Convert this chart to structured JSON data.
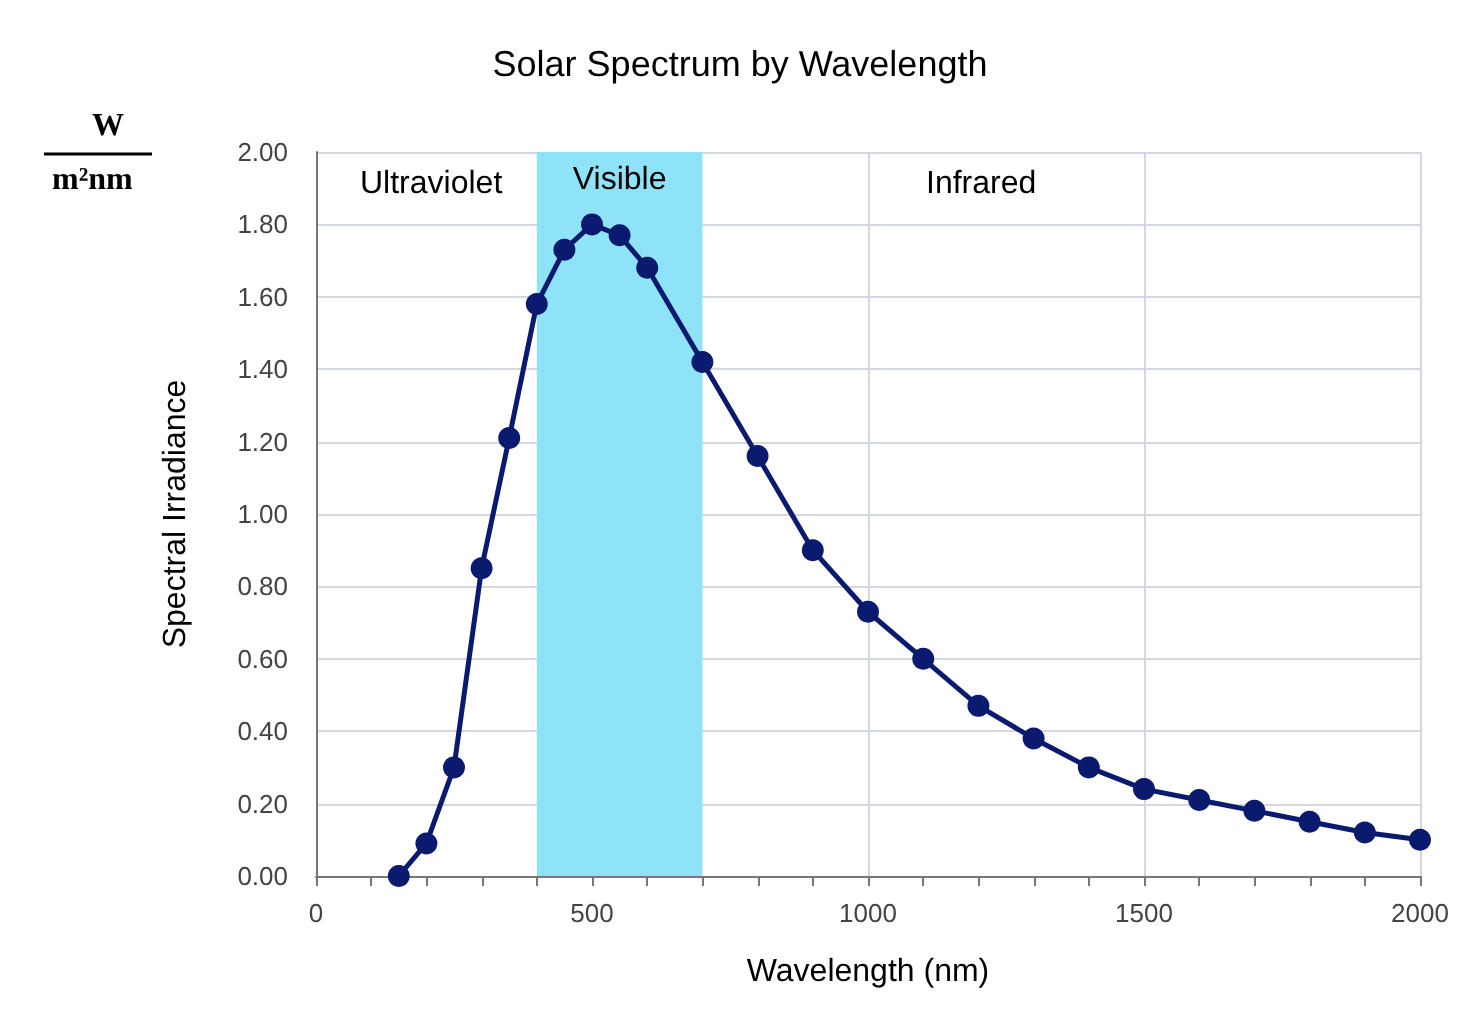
{
  "chart_data": {
    "type": "line",
    "title": "Solar Spectrum by Wavelength",
    "xlabel": "Wavelength (nm)",
    "ylabel": "Spectral Irradiance",
    "annotations": [
      "W",
      "m²nm",
      "Ultraviolet",
      "Infrared"
    ],
    "x": [
      150,
      200,
      250,
      300,
      350,
      400,
      450,
      500,
      550,
      600,
      700,
      800,
      900,
      1000,
      1100,
      1200,
      1300,
      1400,
      1500,
      1600,
      1700,
      1800,
      1900,
      2000
    ],
    "series": [
      {
        "color": "#0a1a6e",
        "values": [
          0,
          0.09,
          0.3,
          0.85,
          1.21,
          1.58,
          1.73,
          1.8,
          1.77,
          1.68,
          1.42,
          1.16,
          0.9,
          0.73,
          0.6,
          0.47,
          0.38,
          0.3,
          0.24,
          0.21,
          0.18,
          0.15,
          0.12,
          0.1
        ]
      }
    ],
    "xlim": [
      0,
      2000
    ],
    "xticks": [
      0,
      {
        "value": 100,
        "label": null
      },
      {
        "value": 200,
        "label": null
      },
      {
        "value": 300,
        "label": null
      },
      {
        "value": 400,
        "label": null
      },
      500,
      {
        "value": 600,
        "label": null
      },
      {
        "value": 700,
        "label": null
      },
      {
        "value": 800,
        "label": null
      },
      {
        "value": 900,
        "label": null
      },
      1000,
      {
        "value": 1100,
        "label": null
      },
      {
        "value": 1200,
        "label": null
      },
      {
        "value": 1300,
        "label": null
      },
      {
        "value": 1400,
        "label": null
      },
      1500,
      {
        "value": 1600,
        "label": null
      },
      {
        "value": 1700,
        "label": null
      },
      {
        "value": 1800,
        "label": null
      },
      {
        "value": 1900,
        "label": null
      },
      2000
    ],
    "ylim": [
      0,
      2
    ],
    "yticks": [
      {
        "value": 0,
        "label": "0.00"
      },
      {
        "value": 0.2,
        "label": "0.20"
      },
      {
        "value": 0.4,
        "label": "0.40"
      },
      {
        "value": 0.6,
        "label": "0.60"
      },
      {
        "value": 0.8,
        "label": "0.80"
      },
      {
        "value": 1,
        "label": "1.00"
      },
      {
        "value": 1.2,
        "label": "1.20"
      },
      {
        "value": 1.4,
        "label": "1.40"
      },
      {
        "value": 1.6,
        "label": "1.60"
      },
      {
        "value": 1.8,
        "label": "1.80"
      },
      {
        "value": 2,
        "label": "2.00"
      }
    ],
    "bands": [
      {
        "axis": "x",
        "from": 400,
        "to": 700,
        "label": "Visible",
        "color": "#8fe3f8"
      }
    ],
    "grid": true,
    "marker": "circle",
    "line_style": "solid"
  }
}
